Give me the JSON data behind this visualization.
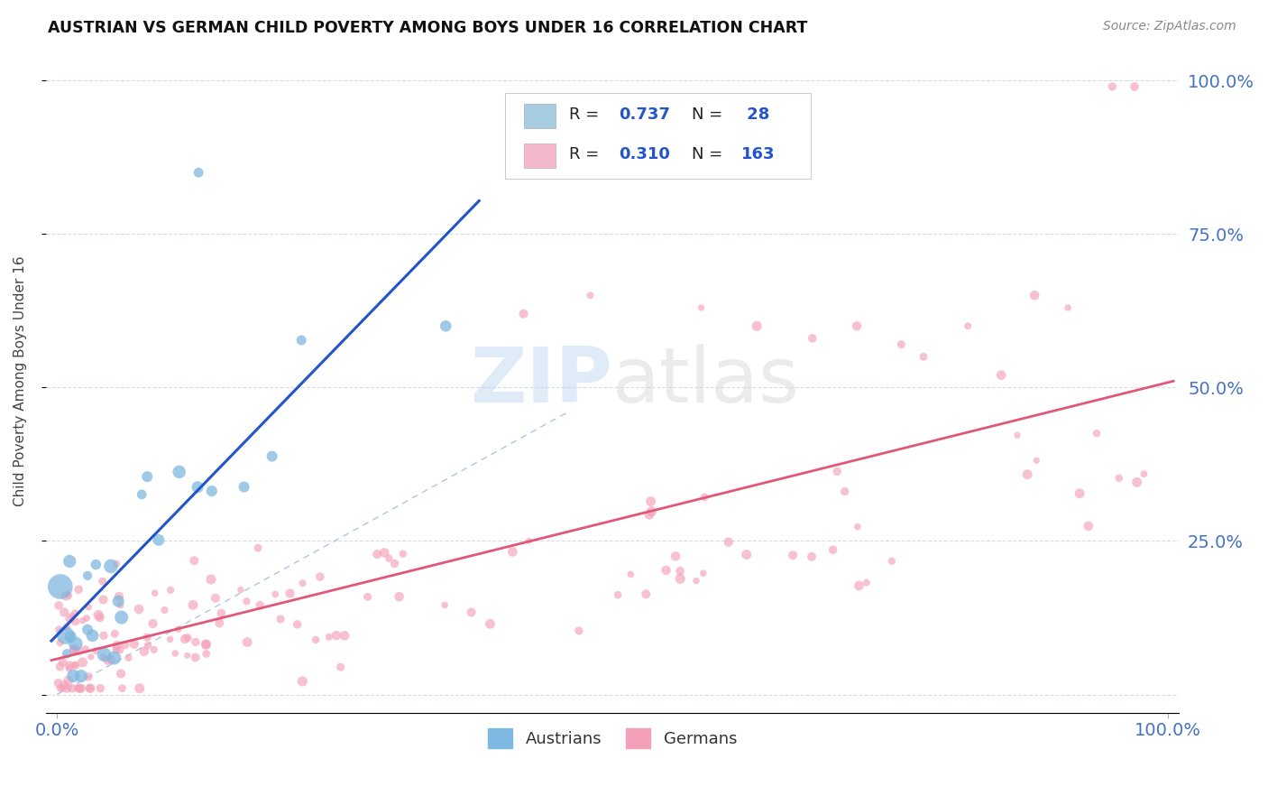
{
  "title": "AUSTRIAN VS GERMAN CHILD POVERTY AMONG BOYS UNDER 16 CORRELATION CHART",
  "source": "Source: ZipAtlas.com",
  "ylabel": "Child Poverty Among Boys Under 16",
  "austrian_color": "#7fb8e0",
  "german_color": "#f4a0b8",
  "austrian_line_color": "#2255cc",
  "german_line_color": "#e05878",
  "ref_line_color": "#9ab8d8",
  "background_color": "#ffffff",
  "grid_color": "#d0d8e8",
  "legend_color_aus": "#a8cce0",
  "legend_color_ger": "#f4b8cc",
  "r_n_color": "#2255cc",
  "text_color": "#222222",
  "source_color": "#888888",
  "tick_color": "#4472c4",
  "aus_r": "0.737",
  "aus_n": "28",
  "ger_r": "0.310",
  "ger_n": "163",
  "xmin": 0.0,
  "xmax": 1.0,
  "ymin": -0.03,
  "ymax": 1.05
}
